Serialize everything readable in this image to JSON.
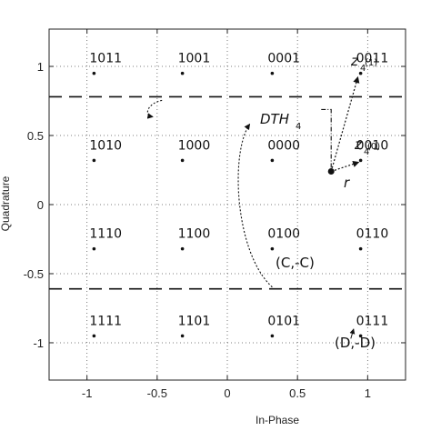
{
  "chart_data": {
    "type": "scatter",
    "xlabel": "In-Phase",
    "ylabel": "Quadrature",
    "xlim": [
      -1.27,
      1.27
    ],
    "ylim": [
      -1.27,
      1.27
    ],
    "grid": true,
    "xticks": [
      {
        "value": -1,
        "label": "-1"
      },
      {
        "value": -0.5,
        "label": "-0.5"
      },
      {
        "value": 0,
        "label": "0"
      },
      {
        "value": 0.5,
        "label": "0.5"
      },
      {
        "value": 1,
        "label": "1"
      }
    ],
    "yticks": [
      {
        "value": 1,
        "label": "1"
      },
      {
        "value": 0.5,
        "label": "0.5"
      },
      {
        "value": 0,
        "label": "0"
      },
      {
        "value": -0.5,
        "label": "-0.5"
      },
      {
        "value": -1,
        "label": "-1"
      }
    ],
    "points": [
      {
        "x": -0.95,
        "y": 0.95,
        "label": "1011"
      },
      {
        "x": -0.32,
        "y": 0.95,
        "label": "1001"
      },
      {
        "x": 0.32,
        "y": 0.95,
        "label": "0001"
      },
      {
        "x": 0.95,
        "y": 0.95,
        "label": "0011"
      },
      {
        "x": -0.95,
        "y": 0.32,
        "label": "1010"
      },
      {
        "x": -0.32,
        "y": 0.32,
        "label": "1000"
      },
      {
        "x": 0.32,
        "y": 0.32,
        "label": "0000"
      },
      {
        "x": 0.95,
        "y": 0.32,
        "label": "0010"
      },
      {
        "x": -0.95,
        "y": -0.32,
        "label": "1110"
      },
      {
        "x": -0.32,
        "y": -0.32,
        "label": "1100"
      },
      {
        "x": 0.32,
        "y": -0.32,
        "label": "0100"
      },
      {
        "x": 0.95,
        "y": -0.32,
        "label": "0110"
      },
      {
        "x": -0.95,
        "y": -0.95,
        "label": "1111"
      },
      {
        "x": -0.32,
        "y": -0.95,
        "label": "1101"
      },
      {
        "x": 0.32,
        "y": -0.95,
        "label": "0101"
      },
      {
        "x": 0.95,
        "y": -0.95,
        "label": "0111"
      }
    ],
    "threshold_lines": [
      0.78,
      -0.61
    ],
    "received_point": {
      "x": 0.74,
      "y": 0.24,
      "label": "r"
    },
    "annotations": {
      "dth": "DTH",
      "dth_sub": "4",
      "z": "z",
      "z_sub": "4",
      "z1_sup": "(1)",
      "z0_sup": "(0)",
      "c_label": "(C,-C)",
      "d_label": "(D,-D)"
    }
  }
}
